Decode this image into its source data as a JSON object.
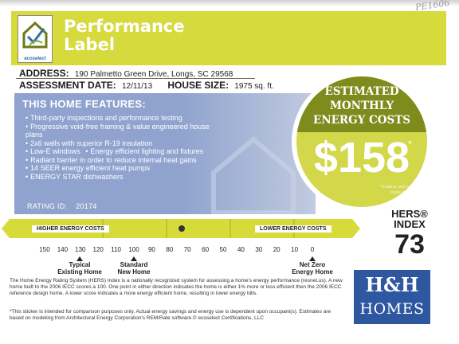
{
  "corner_note": "PE1606",
  "header": {
    "logo_text": "ecoselect",
    "title_line1": "Performance",
    "title_line2": "Label"
  },
  "address": {
    "label": "ADDRESS:",
    "value": "190 Palmetto Green Drive, Longs, SC 29568"
  },
  "assessment": {
    "date_label": "ASSESSMENT DATE:",
    "date_value": "12/11/13",
    "size_label": "HOUSE SIZE:",
    "size_value": "1975 sq. ft."
  },
  "features": {
    "title": "THIS HOME FEATURES:",
    "items": [
      "Third-party inspections and performance testing",
      "Progressive void-free framing & value engineered house",
      "plans",
      "2x6 walls with superior R-19 insulation",
      "Low-E windows",
      "Energy efficient lighting and fixtures",
      "Radiant barrier in order to reduce internal heat gains",
      "14 SEER energy efficient heat pumps",
      "ENERGY STAR dishwashers"
    ],
    "rating_id_label": "RATING ID:",
    "rating_id_value": "20174"
  },
  "energy_cost": {
    "heading_line1": "ESTIMATED",
    "heading_line2": "MONTHLY",
    "heading_line3": "ENERGY COSTS",
    "value": "$158",
    "asterisk": "*",
    "note": "*heating and cooling costs only"
  },
  "hers": {
    "label_line1": "HERS®",
    "label_line2": "INDEX",
    "value": "73"
  },
  "scale": {
    "higher_label": "HIGHER ENERGY COSTS",
    "lower_label": "LOWER ENERGY COSTS",
    "ticks": [
      "150",
      "140",
      "130",
      "120",
      "110",
      "100",
      "90",
      "80",
      "70",
      "60",
      "50",
      "40",
      "30",
      "20",
      "10",
      "0"
    ],
    "marker_value": 73,
    "ref_existing_line1": "Typical",
    "ref_existing_line2": "Existing Home",
    "ref_standard_line1": "Standard",
    "ref_standard_line2": "New Home",
    "ref_netzero_line1": "Net Zero",
    "ref_netzero_line2": "Energy Home"
  },
  "footer": {
    "paragraph1": "The Home Energy Rating System (HERS) Index is a nationally recognized system for assessing a home's energy performance (resnet.us). A new home built to the 2006 IECC scores a 100. One point in either direction indicates the home is either 1% more or less efficient then the 2006 IECC reference design home. A lower score indicates a more energy efficient home, resulting in lower energy bills.",
    "paragraph2": "*This sticker is intended for comparison purposes only. Actual energy savings and energy use is dependent upon occupant(s). Estimates are based on modeling from Architectural Energy Corporation's REM/Rate software.© ecoselect Certifications, LLC"
  },
  "builder": {
    "mark": "H&H",
    "word": "HOMES"
  },
  "colors": {
    "header_yellow": "#d6da3c",
    "features_blue": "#8fa3ce",
    "circle_olive": "#7e8b1d",
    "builder_blue": "#2e57a0"
  }
}
